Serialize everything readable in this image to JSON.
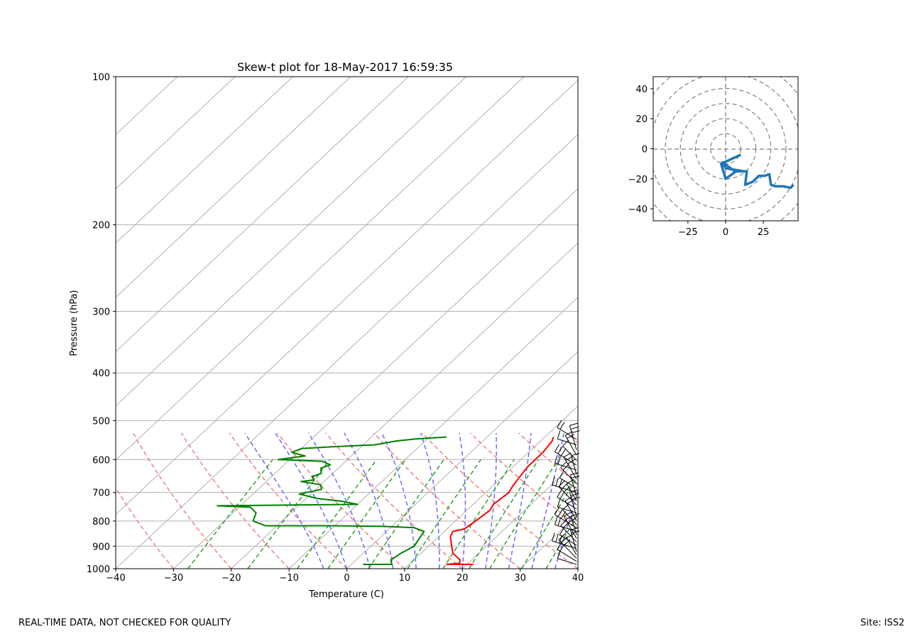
{
  "skewt": {
    "title": "Skew-t plot for 18-May-2017 16:59:35",
    "xlabel": "Temperature (C)",
    "ylabel": "Pressure (hPa)",
    "x_ticks": [
      "−40",
      "−30",
      "−20",
      "−10",
      "0",
      "10",
      "20",
      "30",
      "40"
    ],
    "y_ticks": [
      "100",
      "200",
      "300",
      "400",
      "500",
      "600",
      "700",
      "800",
      "900",
      "1000"
    ]
  },
  "hodograph": {
    "x_ticks": [
      "−25",
      "0",
      "25"
    ],
    "y_ticks": [
      "40",
      "20",
      "0",
      "−20",
      "−40"
    ]
  },
  "footer": {
    "left": "REAL-TIME DATA, NOT CHECKED FOR QUALITY",
    "right": "Site: ISS2"
  },
  "colors": {
    "temperature": "#ff0000",
    "dewpoint": "#008000",
    "dry_adiabats": "#f08080",
    "moist_adiabats": "#6a6aff",
    "mixing_ratio": "#2ca02c",
    "isotherms": "#b0b0b0",
    "hodograph_line": "#1f77b4"
  },
  "chart_data": [
    {
      "type": "line",
      "name": "skew-t",
      "xlim": [
        -40,
        40
      ],
      "ylim": [
        1000,
        100
      ],
      "yscale": "log",
      "grid": true,
      "series": [
        {
          "name": "temperature",
          "points": [
            [
              19,
              980
            ],
            [
              21,
              980
            ],
            [
              16.5,
              980
            ],
            [
              18.5,
              975
            ],
            [
              18,
              960
            ],
            [
              15.5,
              930
            ],
            [
              14,
              900
            ],
            [
              13,
              880
            ],
            [
              12,
              860
            ],
            [
              11.5,
              840
            ],
            [
              13,
              830
            ],
            [
              13.5,
              800
            ],
            [
              14,
              760
            ],
            [
              13.5,
              740
            ],
            [
              14,
              700
            ],
            [
              13.5,
              680
            ],
            [
              13,
              650
            ],
            [
              12.5,
              620
            ],
            [
              12.5,
              580
            ],
            [
              12,
              550
            ],
            [
              11.5,
              540
            ]
          ]
        },
        {
          "name": "dewpoint",
          "points": [
            [
              2,
              980
            ],
            [
              7,
              980
            ],
            [
              6,
              960
            ],
            [
              6.5,
              930
            ],
            [
              7.5,
              900
            ],
            [
              7,
              870
            ],
            [
              6.5,
              840
            ],
            [
              4,
              825
            ],
            [
              -2,
              820
            ],
            [
              -10,
              818
            ],
            [
              -22,
              818
            ],
            [
              -25,
              800
            ],
            [
              -26,
              770
            ],
            [
              -28,
              750
            ],
            [
              -34,
              745
            ],
            [
              -10,
              740
            ],
            [
              -13,
              730
            ],
            [
              -18,
              720
            ],
            [
              -22,
              705
            ],
            [
              -19,
              690
            ],
            [
              -20,
              675
            ],
            [
              -24,
              665
            ],
            [
              -22,
              660
            ],
            [
              -23,
              650
            ],
            [
              -22,
              640
            ],
            [
              -23,
              625
            ],
            [
              -22,
              615
            ],
            [
              -24,
              605
            ],
            [
              -32,
              600
            ],
            [
              -28,
              590
            ],
            [
              -31,
              580
            ],
            [
              -30,
              570
            ],
            [
              -25,
              565
            ],
            [
              -18,
              560
            ],
            [
              -15,
              550
            ],
            [
              -12,
              545
            ],
            [
              -7,
              540
            ]
          ]
        }
      ]
    },
    {
      "type": "line",
      "name": "hodograph",
      "xlim": [
        -48,
        48
      ],
      "ylim": [
        -48,
        48
      ],
      "rings": [
        10,
        20,
        30,
        40,
        50,
        60
      ],
      "points": [
        [
          10,
          -4
        ],
        [
          -3,
          -10
        ],
        [
          0,
          -20
        ],
        [
          7,
          -15
        ],
        [
          12,
          -15
        ],
        [
          0,
          -13
        ],
        [
          -2,
          -9
        ],
        [
          6,
          -15
        ],
        [
          14,
          -15
        ],
        [
          13,
          -24
        ],
        [
          18,
          -22
        ],
        [
          22,
          -18
        ],
        [
          26,
          -18
        ],
        [
          29,
          -17
        ],
        [
          30,
          -24
        ],
        [
          33,
          -25
        ],
        [
          38,
          -25
        ],
        [
          43,
          -26
        ],
        [
          45,
          -24
        ]
      ]
    }
  ]
}
